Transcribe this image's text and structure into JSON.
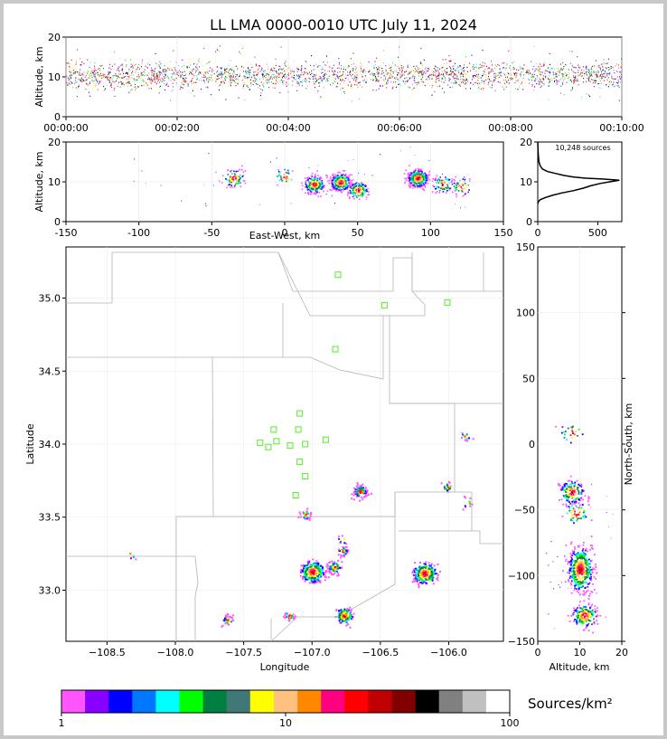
{
  "title": "LL LMA 0000-0010 UTC July 11, 2024",
  "chart_data": [
    {
      "type": "scatter",
      "panel": "altitude-vs-time",
      "ylabel": "Altitude, km",
      "ylim": [
        0,
        20
      ],
      "yticks": [
        "0",
        "10",
        "20"
      ],
      "xlim_minutes": [
        0,
        10
      ],
      "xticks": [
        "00:00:00",
        "00:02:00",
        "00:04:00",
        "00:06:00",
        "00:08:00",
        "00:10:00"
      ]
    },
    {
      "type": "scatter",
      "panel": "altitude-vs-east-west",
      "xlabel": "East-West, km",
      "ylabel": "Altitude, km",
      "xlim": [
        -150,
        150
      ],
      "ylim": [
        0,
        20
      ],
      "xticks": [
        "-150",
        "-100",
        "-50",
        "0",
        "50",
        "100",
        "150"
      ],
      "yticks": [
        "0",
        "10",
        "20"
      ],
      "clusters": [
        {
          "x": -35,
          "y": 11,
          "n": 90
        },
        {
          "x": 0,
          "y": 11.5,
          "n": 40
        },
        {
          "x": 20,
          "y": 9.5,
          "n": 220
        },
        {
          "x": 38,
          "y": 10,
          "n": 320
        },
        {
          "x": 50,
          "y": 8,
          "n": 140
        },
        {
          "x": 91,
          "y": 11,
          "n": 420
        },
        {
          "x": 108,
          "y": 9.5,
          "n": 80
        },
        {
          "x": 121,
          "y": 9,
          "n": 50
        }
      ]
    },
    {
      "type": "line",
      "panel": "altitude-histogram",
      "annotation": "10,248 sources",
      "xlim": [
        0,
        700
      ],
      "ylim": [
        0,
        20
      ],
      "xticks": [
        "0",
        "500"
      ],
      "yticks": [
        "0",
        "10",
        "20"
      ],
      "profile": [
        [
          0,
          4.5
        ],
        [
          5,
          5
        ],
        [
          20,
          5.5
        ],
        [
          60,
          6
        ],
        [
          120,
          6.6
        ],
        [
          200,
          7.2
        ],
        [
          300,
          7.8
        ],
        [
          380,
          8.4
        ],
        [
          440,
          9.0
        ],
        [
          520,
          9.6
        ],
        [
          600,
          10.0
        ],
        [
          680,
          10.4
        ],
        [
          540,
          10.7
        ],
        [
          400,
          10.9
        ],
        [
          300,
          11.2
        ],
        [
          220,
          11.6
        ],
        [
          150,
          12.1
        ],
        [
          80,
          12.6
        ],
        [
          40,
          13.2
        ],
        [
          20,
          14.0
        ],
        [
          10,
          15.0
        ],
        [
          5,
          16.5
        ],
        [
          2,
          18
        ],
        [
          0,
          20
        ]
      ]
    },
    {
      "type": "scatter",
      "panel": "plan-view",
      "xlabel": "Longitude",
      "ylabel": "Latitude",
      "xlim": [
        -108.8,
        -105.6
      ],
      "ylim": [
        32.65,
        35.35
      ],
      "xticks": [
        "−108.5",
        "−108.0",
        "−107.5",
        "−107.0",
        "−106.5",
        "−106.0"
      ],
      "yticks": [
        "33.0",
        "33.5",
        "34.0",
        "34.5",
        "35.0"
      ],
      "stations": [
        [
          -106.81,
          35.16
        ],
        [
          -106.47,
          34.95
        ],
        [
          -106.01,
          34.97
        ],
        [
          -106.83,
          34.65
        ],
        [
          -107.09,
          34.21
        ],
        [
          -107.28,
          34.1
        ],
        [
          -107.1,
          34.1
        ],
        [
          -107.38,
          34.01
        ],
        [
          -107.32,
          33.98
        ],
        [
          -107.26,
          34.02
        ],
        [
          -107.16,
          33.99
        ],
        [
          -107.05,
          34.0
        ],
        [
          -106.9,
          34.03
        ],
        [
          -107.09,
          33.88
        ],
        [
          -107.05,
          33.78
        ],
        [
          -107.12,
          33.65
        ]
      ],
      "clusters": [
        {
          "lon": -106.65,
          "lat": 33.68,
          "n": 90
        },
        {
          "lon": -106.01,
          "lat": 33.71,
          "n": 25
        },
        {
          "lon": -105.88,
          "lat": 34.06,
          "n": 15
        },
        {
          "lon": -105.87,
          "lat": 33.6,
          "n": 12
        },
        {
          "lon": -107.05,
          "lat": 33.52,
          "n": 30
        },
        {
          "lon": -107.0,
          "lat": 33.13,
          "n": 240
        },
        {
          "lon": -106.84,
          "lat": 33.16,
          "n": 60
        },
        {
          "lon": -106.78,
          "lat": 33.27,
          "n": 40
        },
        {
          "lon": -106.18,
          "lat": 33.12,
          "n": 230
        },
        {
          "lon": -106.77,
          "lat": 32.83,
          "n": 120
        },
        {
          "lon": -107.17,
          "lat": 32.83,
          "n": 30
        },
        {
          "lon": -107.62,
          "lat": 32.8,
          "n": 40
        },
        {
          "lon": -106.78,
          "lat": 33.35,
          "n": 8
        },
        {
          "lon": -108.33,
          "lat": 33.25,
          "n": 6
        }
      ]
    },
    {
      "type": "scatter",
      "panel": "north-south-vs-altitude",
      "xlabel": "Altitude, km",
      "ylabel": "North-South, km",
      "xlim": [
        0,
        20
      ],
      "ylim": [
        -150,
        150
      ],
      "xticks": [
        "0",
        "10",
        "20"
      ],
      "yticks": [
        "150",
        "100",
        "50",
        "0",
        "−50",
        "−100",
        "−150"
      ],
      "clusters": [
        {
          "x": 8,
          "y": -36,
          "n": 160
        },
        {
          "x": 9,
          "y": -52,
          "n": 50
        },
        {
          "x": 10,
          "y": -95,
          "n": 420
        },
        {
          "x": 11,
          "y": -130,
          "n": 170
        },
        {
          "x": 8,
          "y": 9,
          "n": 25
        }
      ]
    }
  ],
  "colorbar": {
    "unit": "Sources/km²",
    "tick_labels": [
      "1",
      "10",
      "100"
    ],
    "colors": [
      "#ff55ff",
      "#8800ff",
      "#0000ff",
      "#0077ff",
      "#00ffff",
      "#00ff00",
      "#008040",
      "#407878",
      "#ffff00",
      "#ffc080",
      "#ff8800",
      "#ff0080",
      "#ff0000",
      "#c00000",
      "#800000",
      "#000000",
      "#808080",
      "#c0c0c0",
      "#ffffff"
    ]
  }
}
